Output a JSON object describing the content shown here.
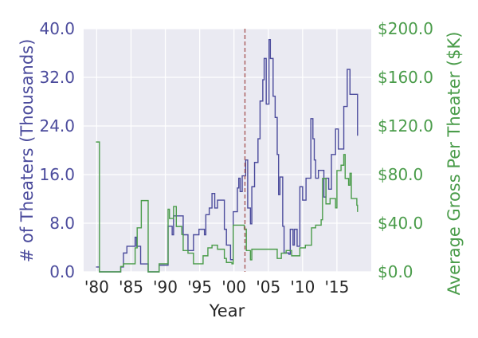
{
  "chart_data": {
    "type": "line",
    "title": "",
    "xlabel": "Year",
    "ylabel": "# of Theaters (Thousands)",
    "y2label": "Average Gross Per Theater ($K)",
    "xlim": [
      1978.1,
      2020
    ],
    "ylim": [
      0,
      40
    ],
    "y2lim": [
      0,
      200
    ],
    "grid": true,
    "x_ticks": [
      {
        "value": 1980,
        "label": "'80"
      },
      {
        "value": 1985,
        "label": "'85"
      },
      {
        "value": 1990,
        "label": "'90"
      },
      {
        "value": 1995,
        "label": "'95"
      },
      {
        "value": 2000,
        "label": "'00"
      },
      {
        "value": 2005,
        "label": "'05"
      },
      {
        "value": 2010,
        "label": "'10"
      },
      {
        "value": 2015,
        "label": "'15"
      }
    ],
    "y_ticks": [
      {
        "value": 0,
        "label": "0.0"
      },
      {
        "value": 8,
        "label": "8.0"
      },
      {
        "value": 16,
        "label": "16.0"
      },
      {
        "value": 24,
        "label": "24.0"
      },
      {
        "value": 32,
        "label": "32.0"
      },
      {
        "value": 40,
        "label": "40.0"
      }
    ],
    "y2_ticks": [
      {
        "value": 0,
        "label": "$0.0"
      },
      {
        "value": 40,
        "label": "$40.0"
      },
      {
        "value": 80,
        "label": "$80.0"
      },
      {
        "value": 120,
        "label": "$120.0"
      },
      {
        "value": 160,
        "label": "$160.0"
      },
      {
        "value": 200,
        "label": "$200.0"
      }
    ],
    "vline": {
      "x": 2001.6,
      "style": "dashed",
      "color": "#a85a5a"
    },
    "colors": {
      "theaters": "#4b4b9c",
      "gross": "#4a9c4a",
      "background": "#eaeaf2"
    },
    "series": [
      {
        "axis": "left",
        "step": true,
        "points": [
          [
            1979.9,
            0.8
          ],
          [
            1980.4,
            0
          ],
          [
            1983.5,
            0.8
          ],
          [
            1983.9,
            3.1
          ],
          [
            1984.4,
            4.2
          ],
          [
            1985.6,
            5.7
          ],
          [
            1985.8,
            4.2
          ],
          [
            1986.4,
            1.3
          ],
          [
            1987.5,
            0
          ],
          [
            1989.1,
            1.1
          ],
          [
            1990.4,
            7.5
          ],
          [
            1991.0,
            6.1
          ],
          [
            1991.2,
            9.2
          ],
          [
            1992.6,
            6.1
          ],
          [
            1993.3,
            3.5
          ],
          [
            1994.1,
            6.1
          ],
          [
            1994.9,
            7.0
          ],
          [
            1995.7,
            6.1
          ],
          [
            1995.9,
            9.4
          ],
          [
            1996.4,
            10.5
          ],
          [
            1996.8,
            12.9
          ],
          [
            1997.2,
            10.5
          ],
          [
            1997.6,
            11.8
          ],
          [
            1998.6,
            7.0
          ],
          [
            1998.9,
            4.4
          ],
          [
            1999.5,
            2.0
          ],
          [
            1999.9,
            9.9
          ],
          [
            2000.5,
            13.8
          ],
          [
            2000.7,
            15.4
          ],
          [
            2000.9,
            13.2
          ],
          [
            2001.2,
            15.8
          ],
          [
            2001.7,
            18.4
          ],
          [
            2002.0,
            10.5
          ],
          [
            2002.4,
            7.9
          ],
          [
            2002.6,
            14.0
          ],
          [
            2003.0,
            18.0
          ],
          [
            2003.5,
            21.9
          ],
          [
            2003.8,
            28.1
          ],
          [
            2004.2,
            31.6
          ],
          [
            2004.4,
            35.1
          ],
          [
            2004.7,
            27.6
          ],
          [
            2005.1,
            38.2
          ],
          [
            2005.3,
            35.1
          ],
          [
            2005.7,
            28.9
          ],
          [
            2006.0,
            25.4
          ],
          [
            2006.3,
            19.3
          ],
          [
            2006.5,
            12.7
          ],
          [
            2006.7,
            15.6
          ],
          [
            2007.1,
            7.5
          ],
          [
            2007.3,
            3.1
          ],
          [
            2008.0,
            2.9
          ],
          [
            2008.2,
            7.0
          ],
          [
            2008.6,
            4.4
          ],
          [
            2008.8,
            7.0
          ],
          [
            2009.2,
            4.2
          ],
          [
            2009.6,
            14.0
          ],
          [
            2010.0,
            11.8
          ],
          [
            2010.5,
            15.4
          ],
          [
            2011.2,
            25.2
          ],
          [
            2011.5,
            21.9
          ],
          [
            2011.7,
            18.4
          ],
          [
            2011.9,
            15.4
          ],
          [
            2012.3,
            16.7
          ],
          [
            2013.1,
            12.3
          ],
          [
            2013.4,
            15.4
          ],
          [
            2013.8,
            13.6
          ],
          [
            2014.2,
            19.3
          ],
          [
            2014.8,
            23.5
          ],
          [
            2015.2,
            20.2
          ],
          [
            2016.0,
            27.2
          ],
          [
            2016.5,
            33.3
          ],
          [
            2016.9,
            29.2
          ],
          [
            2017.3,
            29.2
          ],
          [
            2018.0,
            22.4
          ]
        ]
      },
      {
        "axis": "right",
        "step": true,
        "points": [
          [
            1979.9,
            106.8
          ],
          [
            1980.4,
            0
          ],
          [
            1983.5,
            4.4
          ],
          [
            1983.9,
            6.6
          ],
          [
            1985.6,
            19.7
          ],
          [
            1985.9,
            36.2
          ],
          [
            1986.5,
            58.6
          ],
          [
            1987.5,
            0
          ],
          [
            1989.1,
            6.6
          ],
          [
            1990.4,
            51.5
          ],
          [
            1990.6,
            43.9
          ],
          [
            1991.2,
            53.7
          ],
          [
            1991.6,
            37.3
          ],
          [
            1992.4,
            30.7
          ],
          [
            1992.6,
            17.5
          ],
          [
            1993.3,
            15.4
          ],
          [
            1994.1,
            6.6
          ],
          [
            1995.5,
            13.2
          ],
          [
            1996.2,
            19.7
          ],
          [
            1996.8,
            21.9
          ],
          [
            1997.6,
            18.6
          ],
          [
            1998.6,
            11.0
          ],
          [
            1998.9,
            7.7
          ],
          [
            1999.7,
            6.6
          ],
          [
            1999.9,
            38.4
          ],
          [
            2001.5,
            35.1
          ],
          [
            2001.8,
            17.5
          ],
          [
            2002.4,
            9.9
          ],
          [
            2002.6,
            18.6
          ],
          [
            2006.3,
            11.0
          ],
          [
            2006.9,
            15.4
          ],
          [
            2007.6,
            17.5
          ],
          [
            2008.4,
            13.2
          ],
          [
            2009.6,
            19.7
          ],
          [
            2010.4,
            21.9
          ],
          [
            2011.3,
            36.2
          ],
          [
            2011.9,
            38.4
          ],
          [
            2012.7,
            42.8
          ],
          [
            2012.9,
            76.8
          ],
          [
            2013.4,
            55.9
          ],
          [
            2014.0,
            60.3
          ],
          [
            2014.8,
            52.6
          ],
          [
            2015.0,
            83.3
          ],
          [
            2015.6,
            87.7
          ],
          [
            2016.0,
            96.5
          ],
          [
            2016.2,
            76.8
          ],
          [
            2016.7,
            71.3
          ],
          [
            2016.9,
            81.1
          ],
          [
            2017.1,
            60.3
          ],
          [
            2017.9,
            54.8
          ],
          [
            2018.0,
            49.3
          ]
        ]
      }
    ]
  }
}
